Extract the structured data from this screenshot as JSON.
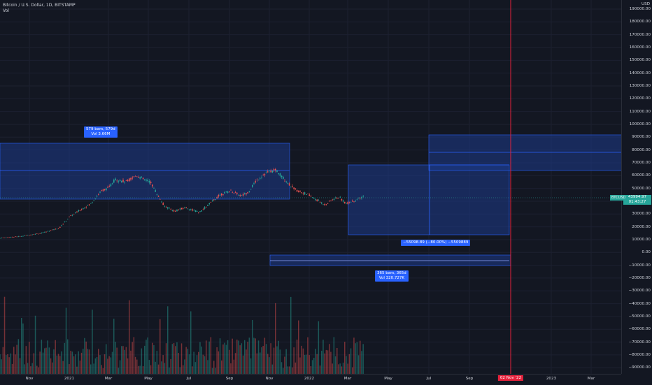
{
  "legend": {
    "symbol_line": "Bitcoin / U.S. Dollar, 1D, BITSTAMP",
    "volume_label": "Vol"
  },
  "price_axis": {
    "currency": "USD",
    "labels": [
      "190000.00",
      "180000.00",
      "170000.00",
      "160000.00",
      "150000.00",
      "140000.00",
      "130000.00",
      "120000.00",
      "110000.00",
      "100000.00",
      "90000.00",
      "80000.00",
      "70000.00",
      "60000.00",
      "50000.00",
      "40000.00",
      "30000.00",
      "20000.00",
      "10000.00",
      "0.00",
      "−10000.00",
      "−20000.00",
      "−30000.00",
      "−40000.00",
      "−50000.00",
      "−60000.00",
      "−70000.00",
      "−80000.00",
      "−90000.00"
    ],
    "current_price": "43994.97",
    "countdown": "01:43:27",
    "symbol_tag": "BTCUSD"
  },
  "time_axis": {
    "labels": [
      "Nov",
      "2021",
      "Mar",
      "May",
      "Jul",
      "Sep",
      "Nov",
      "2022",
      "Mar",
      "May",
      "Jul",
      "Sep",
      "2023",
      "Mar"
    ],
    "highlight_label": "02 Nov '22"
  },
  "measurements": [
    {
      "line1": "579 bars, 579d",
      "line2": "Vol 3.66M"
    },
    {
      "line1": "−55098.89 (−80.00%) −5509889",
      "line2": ""
    },
    {
      "line1": "365 bars, 365d",
      "line2": "Vol 320.727K"
    }
  ],
  "colors": {
    "background": "#131722",
    "up": "#26a69a",
    "down": "#ef5350",
    "drawing_fill": "#1e3a8a",
    "drawing_line": "#2962ff",
    "vertical_line": "#e5223c",
    "badge": "#2962ff"
  }
}
